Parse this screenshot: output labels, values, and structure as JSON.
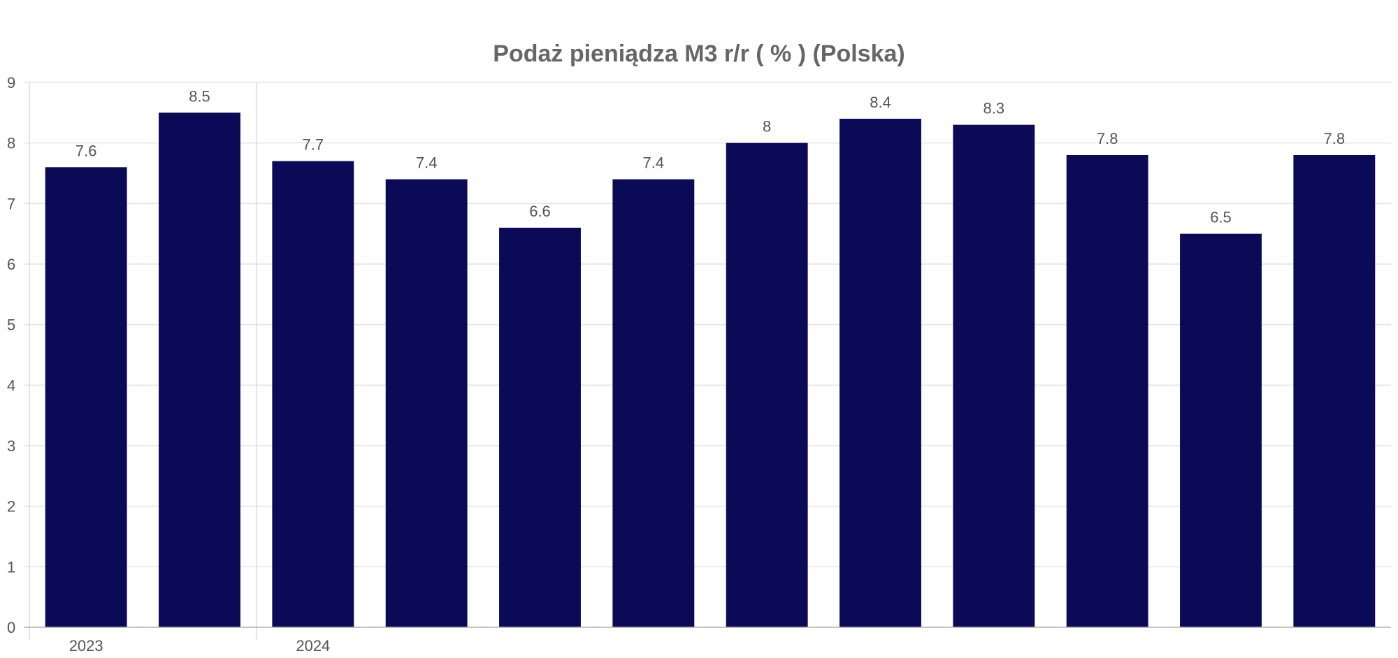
{
  "chart_data": {
    "type": "bar",
    "title": "Podaż pieniądza M3 r/r ( % ) (Polska)",
    "xlabel": "",
    "ylabel": "",
    "ylim": [
      0,
      9
    ],
    "yticks": [
      "0",
      "1",
      "2",
      "3",
      "4",
      "5",
      "6",
      "7",
      "8",
      "9"
    ],
    "grid": true,
    "legend": "none",
    "bar_color": "#0a0a56",
    "x_year_labels": [
      {
        "label": "2023",
        "start_index": 0
      },
      {
        "label": "2024",
        "start_index": 2
      }
    ],
    "values": [
      7.6,
      8.5,
      7.7,
      7.4,
      6.6,
      7.4,
      8,
      8.4,
      8.3,
      7.8,
      6.5,
      7.8
    ],
    "data_labels": [
      "7.6",
      "8.5",
      "7.7",
      "7.4",
      "6.6",
      "7.4",
      "8",
      "8.4",
      "8.3",
      "7.8",
      "6.5",
      "7.8"
    ]
  }
}
